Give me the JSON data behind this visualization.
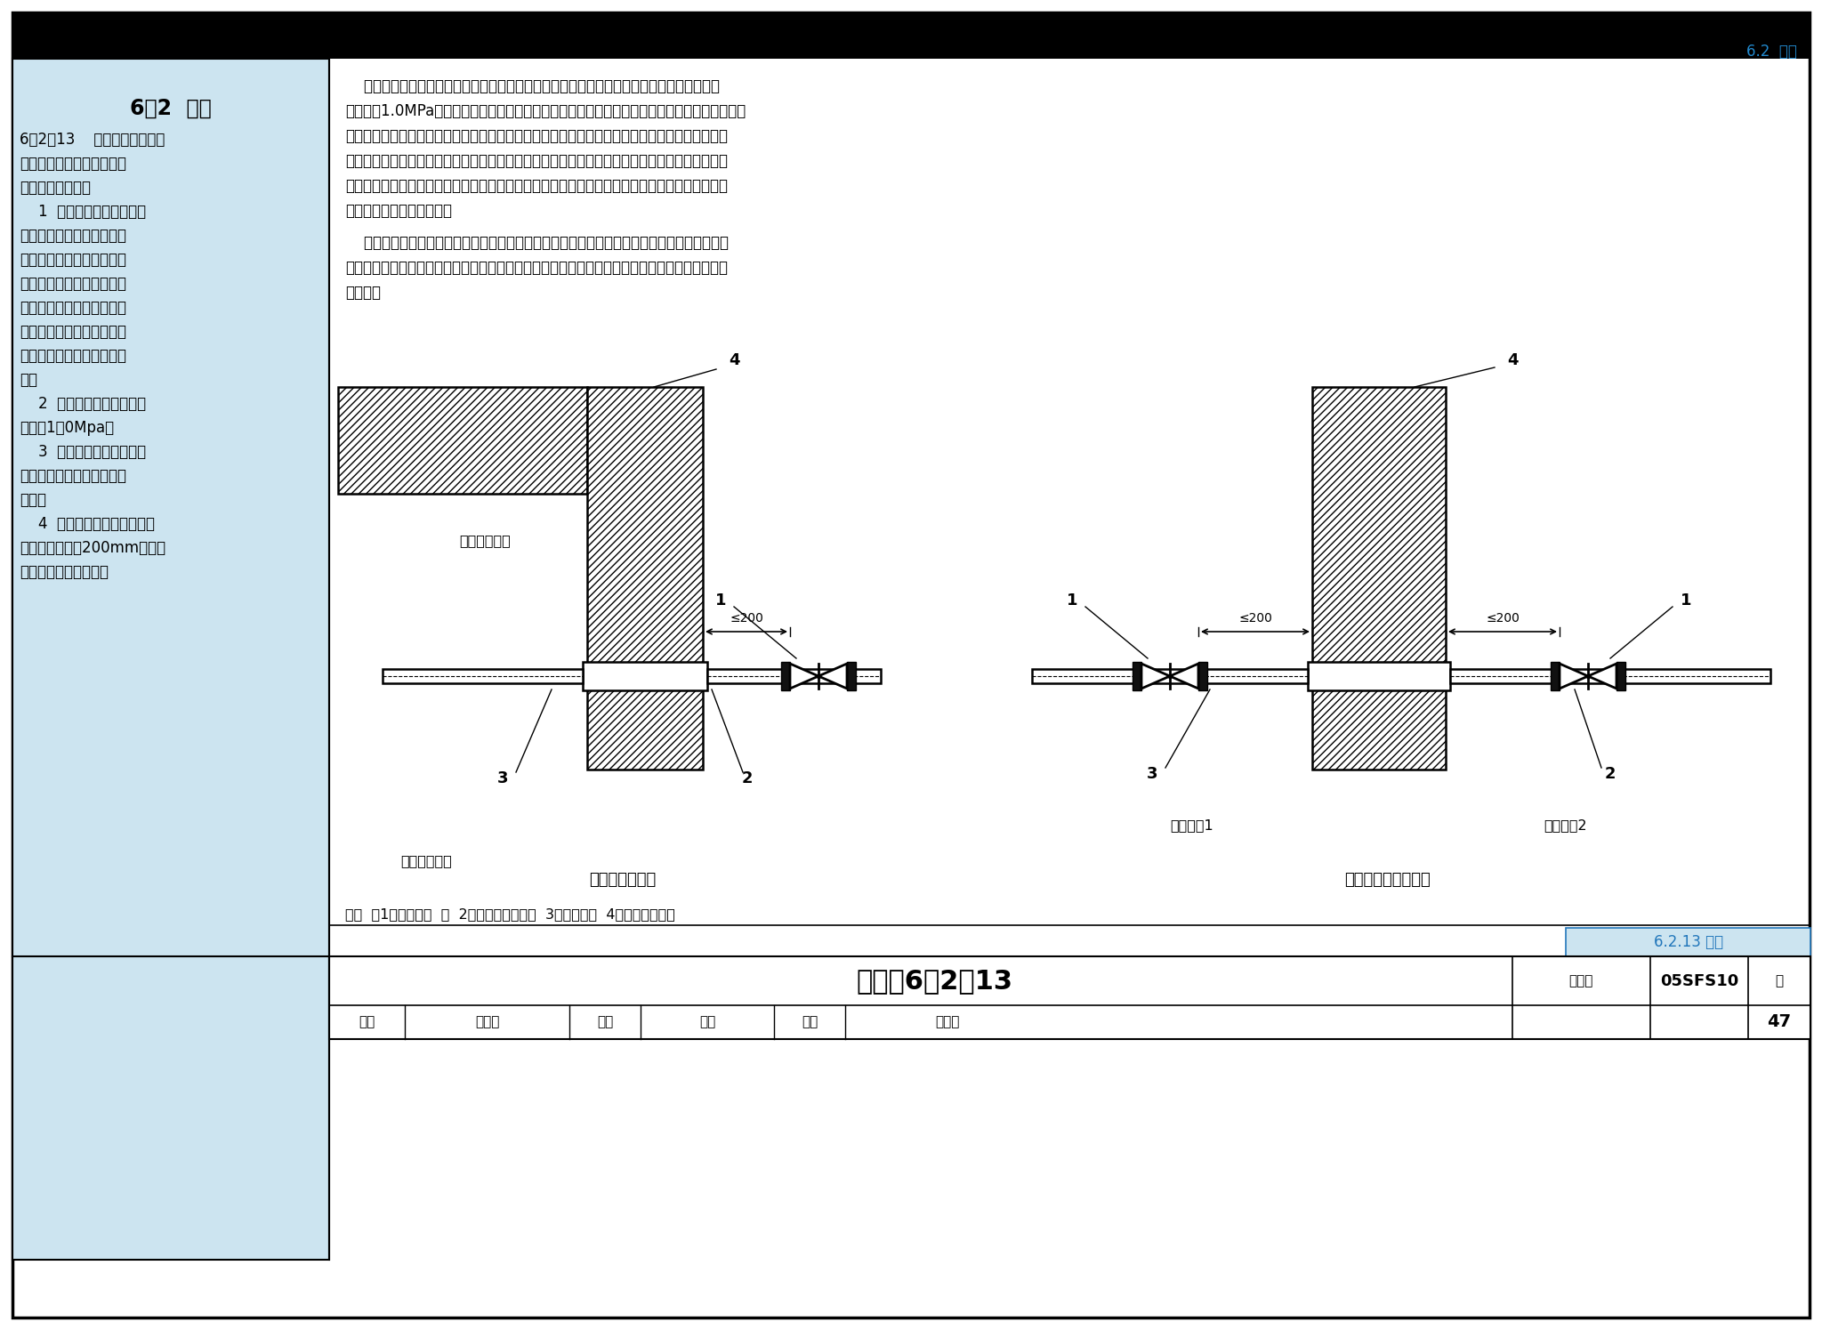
{
  "page_bg": "#ffffff",
  "left_panel_bg": "#cce4f0",
  "title_header_text": "6.2  给水",
  "title_header_color": "#2288cc",
  "left_title": "6．2  给水",
  "left_body": [
    [
      "6．2．13    防空地下室给水管",
      0
    ],
    [
      "道上防护阀门的设置及安装",
      1
    ],
    [
      "应符合下列要求：",
      2
    ],
    [
      "    1  当给水管道从出入口引",
      3
    ],
    [
      "入时，应在防护门的内侧设",
      4
    ],
    [
      "置；当从人防围护结构引入",
      5
    ],
    [
      "时，应在人防围护结构的内",
      6
    ],
    [
      "侧设置；穿过防护单元之间",
      7
    ],
    [
      "的防护密闭隔墙时，应在防",
      8
    ],
    [
      "护密闭隔墙两侧的管道上设",
      9
    ],
    [
      "置；",
      10
    ],
    [
      "    2  防护阀门的公称压力不",
      11
    ],
    [
      "应小于1．0Mpa；",
      12
    ],
    [
      "    3  防护阀门应采用阀芯为",
      13
    ],
    [
      "不锈钢或铜材质的闸阀或截",
      14
    ],
    [
      "止阀；",
      15
    ],
    [
      "    4  人防围护结构内侧距阀门",
      16
    ],
    [
      "近端面不宜大于200mm。阀门",
      17
    ],
    [
      "应有明显的启闭标志。",
      18
    ]
  ],
  "right_para1": [
    "    防护阀门是指为防冲击波及核生化战剂由管道进入工程内部而设置的阀门。根据试验，使用",
    "公称压力1.0MPa及以上的阀门，能满足防空地下室给排水管道的抗力要求。目前的防爆波阀门只",
    "有防冲击波的作用，而无法防止核生化战剂由室外经管道渗入工程内。所以在给水引入管上单独使",
    "用防爆波阀门时，不能同时满足防冲击波和核生化战剂的防护要求。由于防空地下室战时内部有贮",
    "水，可以在空袭报警时将给水引入管上的防护阀门关闭，截断与外界的连通，防止冲击波和核生化",
    "战剂由管道进入工程内部。"
  ],
  "right_para2": [
    "    防护阀门距围护结构内侧安装距离的要求，是为了避免在防护阀门前有支管接出或安装弯头。",
    "防护阀门宜采用明杆阀门或其他有启闭标志的阀门。管道优先从外墙出入，尽量避免由临空墙或顶",
    "板出入。"
  ],
  "diagram1_title": "管道从侧墙出入",
  "diagram2_title": "管道从相邻单元引入",
  "legend": "说明  ：1－防护阀门  ；  2－刚性防水套管；  3－穿墙管；  4－围护结构墙体",
  "label_outside": "防空地下室外",
  "label_inside": "防空地下室内",
  "label_unit1": "防护单元1",
  "label_unit2": "防护单元2",
  "section_tag": "6.2.13 图示",
  "footer_title": "给水－6．2．13",
  "footer_col1": "图集号",
  "footer_col2": "05SFS10",
  "footer_shenhe": "审核",
  "footer_yanlamei": "杨腊梅",
  "footer_jiaodui": "校对",
  "footer_duiyong": "兑勇",
  "footer_sheji": "设计",
  "footer_dingzhibin": "丁志斌",
  "footer_ye": "页",
  "footer_page": "47"
}
